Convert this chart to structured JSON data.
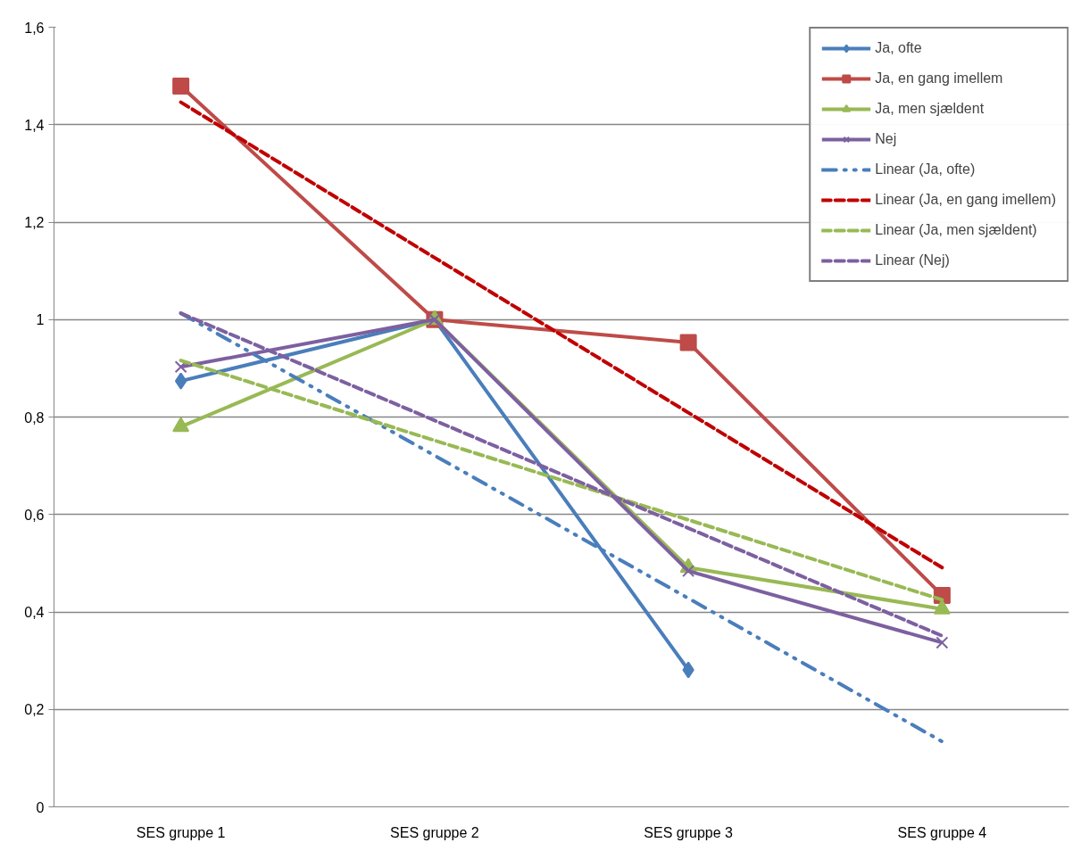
{
  "chart_data": {
    "type": "line",
    "categories": [
      "SES gruppe 1",
      "SES gruppe 2",
      "SES gruppe 3",
      "SES gruppe 4"
    ],
    "series": [
      {
        "name": "Ja, ofte",
        "color": "#4a7ebb",
        "marker": "diamond",
        "line_style": "solid",
        "values": [
          0.874,
          1.0,
          0.281,
          null
        ]
      },
      {
        "name": "Ja, en gang imellem",
        "color": "#be4b48",
        "marker": "square",
        "line_style": "solid",
        "values": [
          1.479,
          1.0,
          0.953,
          0.434
        ]
      },
      {
        "name": "Ja, men sjældent",
        "color": "#98b954",
        "marker": "triangle",
        "line_style": "solid",
        "values": [
          0.78,
          1.0,
          0.491,
          0.406
        ]
      },
      {
        "name": "Nej",
        "color": "#7d60a0",
        "marker": "cross",
        "line_style": "solid",
        "values": [
          0.903,
          1.0,
          0.484,
          0.337
        ]
      },
      {
        "name": "Linear (Ja, ofte)",
        "color": "#4a7ebb",
        "marker": "none",
        "line_style": "dotted",
        "values": [
          1.013,
          0.721,
          0.428,
          0.134
        ]
      },
      {
        "name": "Linear (Ja, en gang imellem)",
        "color": "#c00000",
        "marker": "none",
        "line_style": "dashed",
        "values": [
          1.446,
          1.127,
          0.809,
          0.491
        ]
      },
      {
        "name": "Linear (Ja, men sjældent)",
        "color": "#98b954",
        "marker": "none",
        "line_style": "dashed",
        "values": [
          0.916,
          0.752,
          0.589,
          0.425
        ]
      },
      {
        "name": "Linear (Nej)",
        "color": "#7d60a0",
        "marker": "none",
        "line_style": "dashed",
        "values": [
          1.013,
          0.793,
          0.572,
          0.351
        ]
      }
    ],
    "ylim": [
      0,
      1.6
    ],
    "yticks": [
      0,
      {
        "value": 0.2,
        "label": "0,2"
      },
      {
        "value": 0.4,
        "label": "0,4"
      },
      {
        "value": 0.6,
        "label": "0,6"
      },
      {
        "value": 0.8,
        "label": "0,8"
      },
      1,
      {
        "value": 1.2,
        "label": "1,2"
      },
      {
        "value": 1.4,
        "label": "1,4"
      },
      {
        "value": 1.6,
        "label": "1,6"
      }
    ],
    "grid": "y",
    "legend": "top right"
  }
}
